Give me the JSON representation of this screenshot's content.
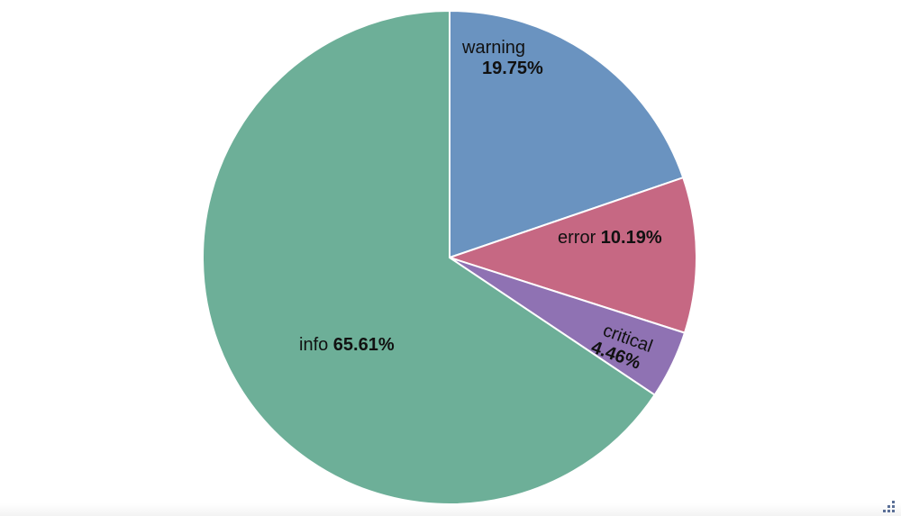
{
  "chart_data": {
    "type": "pie",
    "slices": [
      {
        "label": "warning",
        "value": 19.75,
        "display": "19.75%",
        "color": "#6a93c0"
      },
      {
        "label": "error",
        "value": 10.19,
        "display": "10.19%",
        "color": "#c66883"
      },
      {
        "label": "critical",
        "value": 4.46,
        "display": "4.46%",
        "color": "#8f72b3"
      },
      {
        "label": "info",
        "value": 65.61,
        "display": "65.61%",
        "color": "#6daf98"
      }
    ],
    "start_angle": "12 o'clock",
    "direction": "clockwise",
    "legend": "none",
    "labels": "inside"
  },
  "ui": {
    "resize_handle_icon": "resize-grip-icon"
  }
}
